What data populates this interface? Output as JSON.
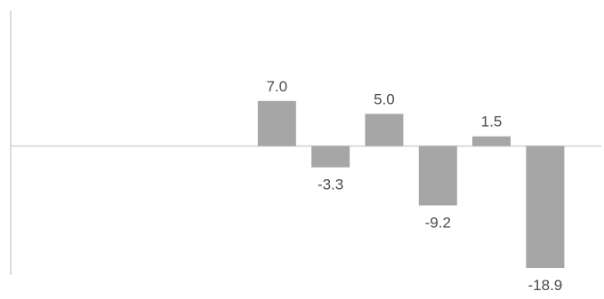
{
  "chart_data": {
    "type": "bar",
    "categories": [
      "",
      "",
      "",
      "",
      "",
      "",
      "",
      "",
      "",
      ""
    ],
    "values": [
      null,
      null,
      null,
      null,
      7.0,
      -3.3,
      5.0,
      -9.2,
      1.5,
      -18.9
    ],
    "data_labels": [
      "",
      "",
      "",
      "",
      "7.0",
      "-3.3",
      "5.0",
      "-9.2",
      "1.5",
      "-18.9"
    ],
    "ylim": [
      -20,
      21
    ],
    "grid": false,
    "legend": "none",
    "colors": {
      "bar": "#a6a6a6",
      "axis": "#d0d0d0",
      "label": "#4a4a4a"
    }
  }
}
